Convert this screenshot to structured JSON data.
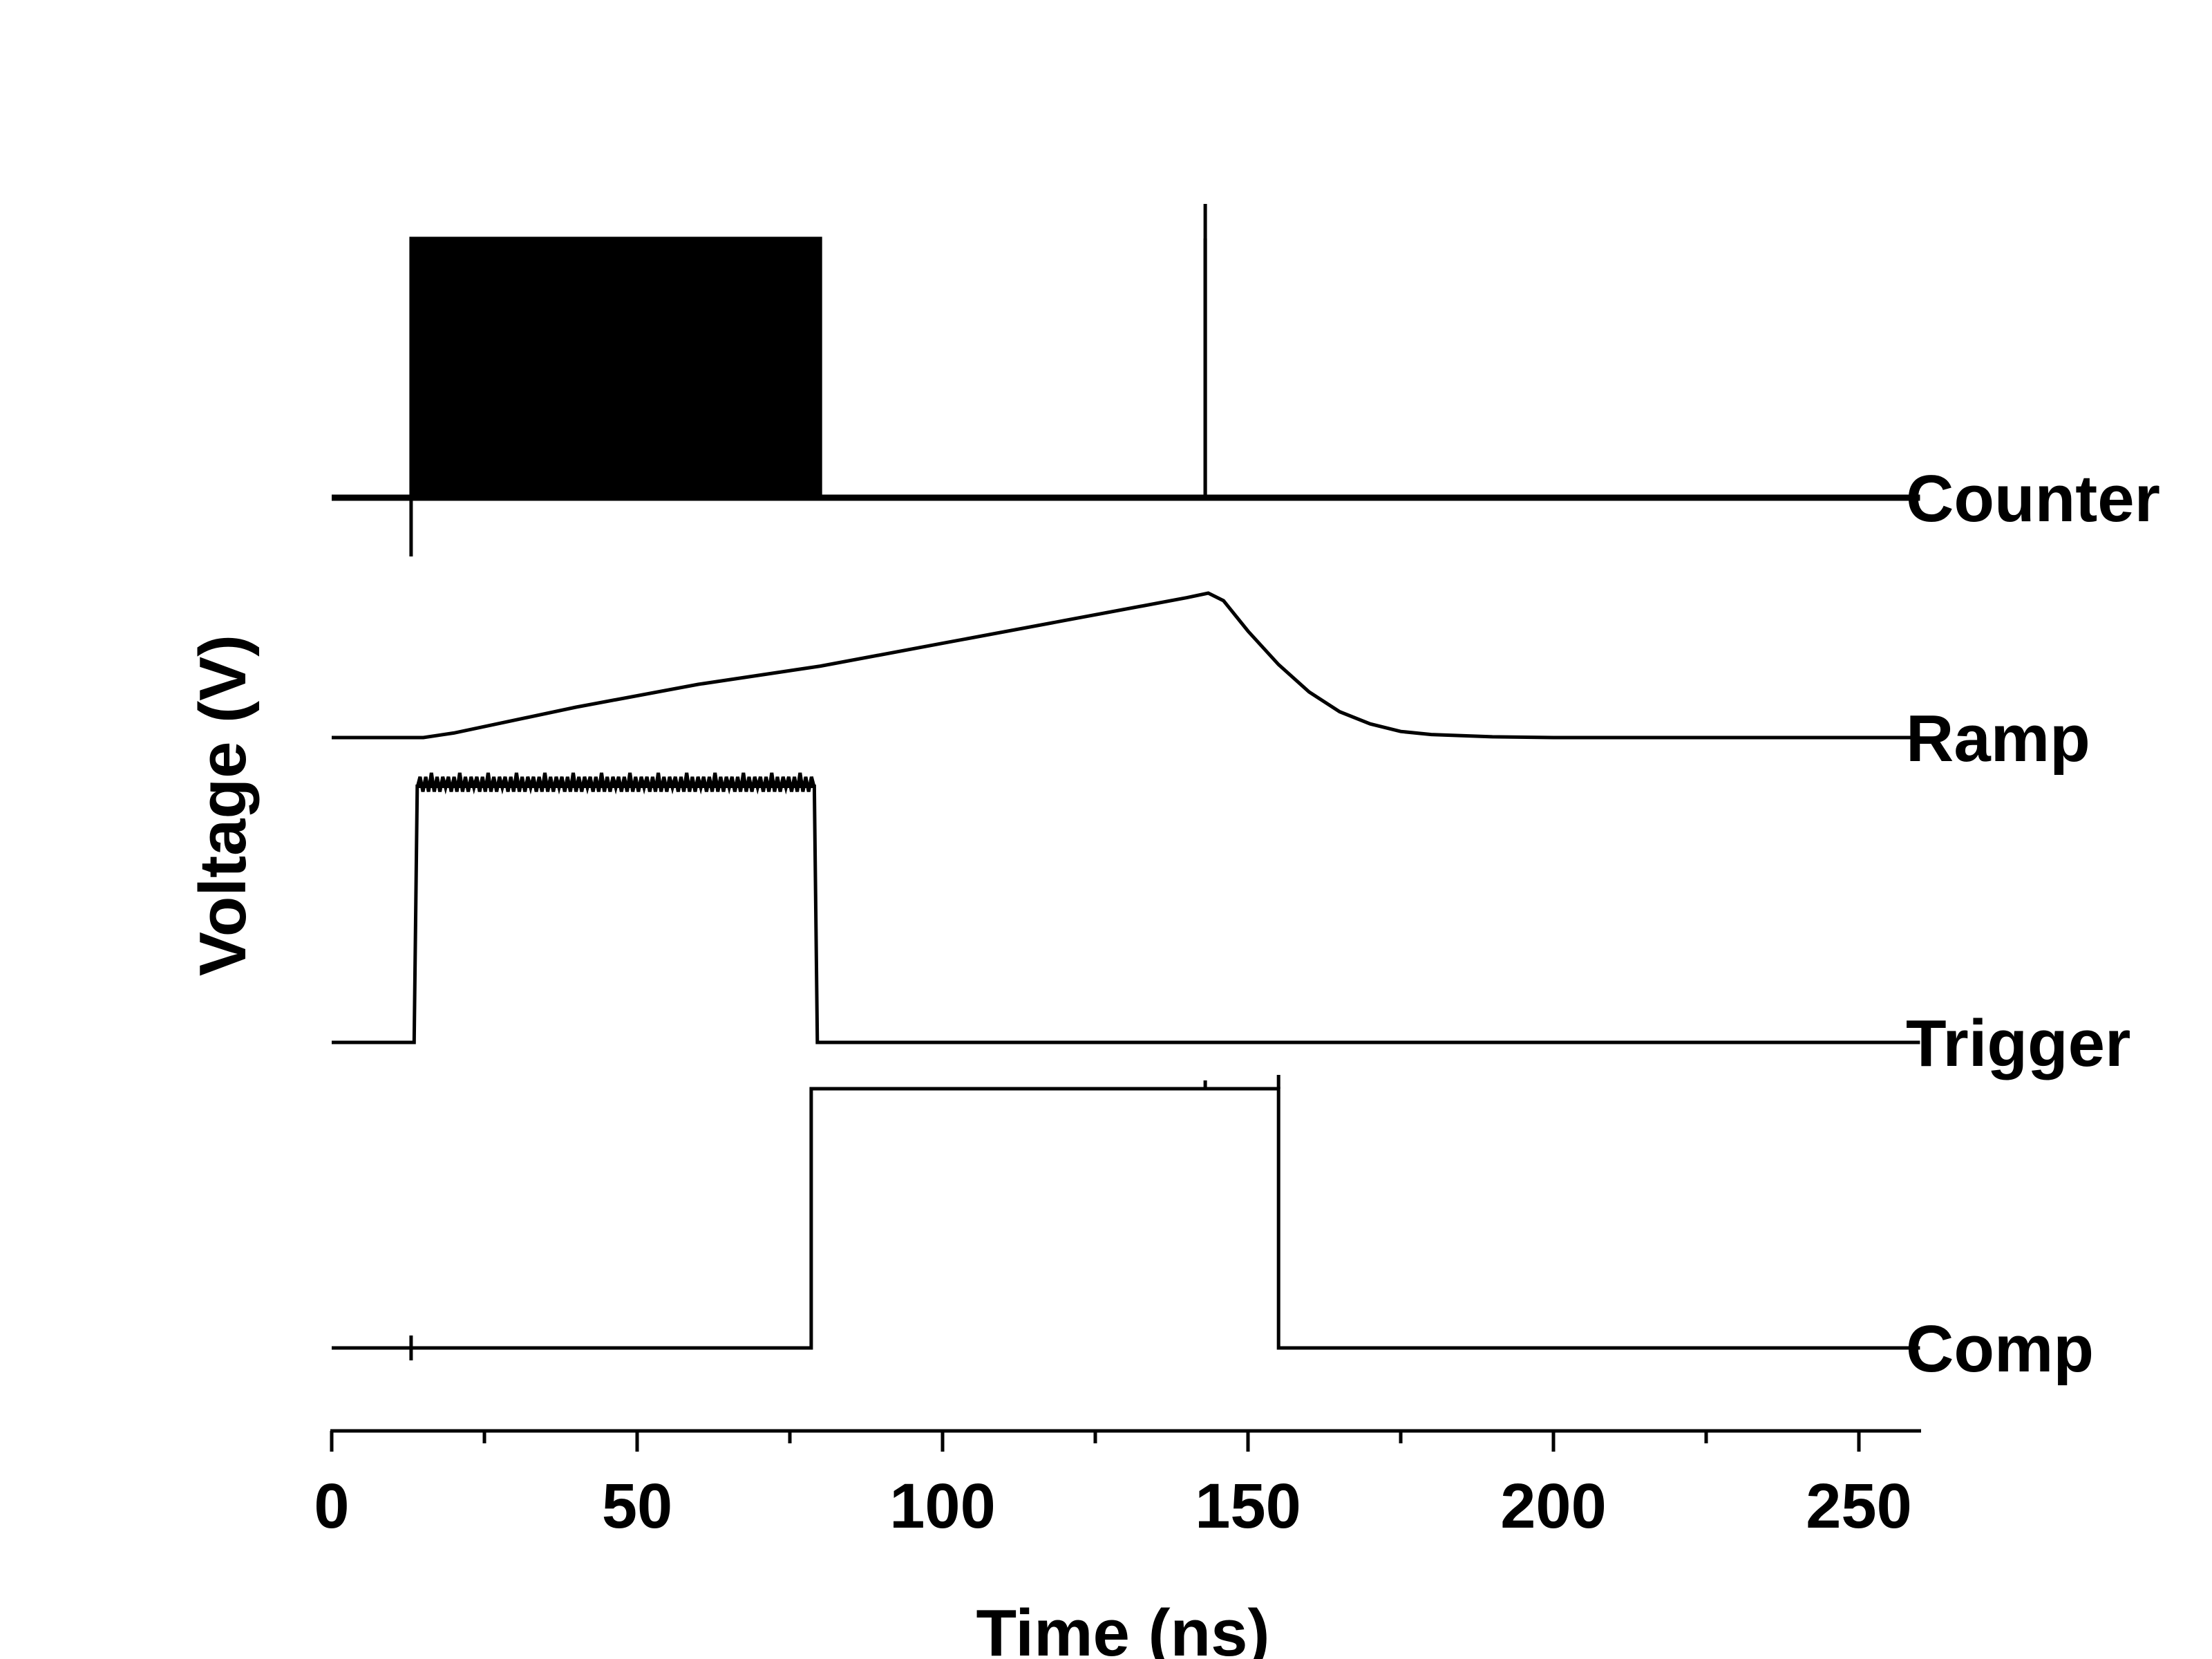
{
  "chart_data": {
    "type": "line",
    "title": "",
    "xlabel": "Time (ns)",
    "ylabel": "Voltage (V)",
    "xlim": [
      0,
      260
    ],
    "x_ticks": [
      0,
      50,
      100,
      150,
      200,
      250
    ],
    "x_tick_labels": [
      "0",
      "50",
      "100",
      "150",
      "200",
      "250"
    ],
    "x_minor_tick_step": 25,
    "y_axis_shown": false,
    "grid": false,
    "legend": "none",
    "offset_traces": true,
    "series": [
      {
        "name": "Counter",
        "style": "clock burst (dense toggling) 13–80 ns, single period 80–143 ns",
        "baseline": 0,
        "high": 1,
        "points": [
          [
            0,
            0
          ],
          [
            13,
            0
          ],
          [
            13,
            1
          ],
          [
            80,
            1
          ],
          [
            80,
            0
          ],
          [
            143,
            0
          ],
          [
            143,
            1
          ],
          [
            143,
            0
          ],
          [
            260,
            0
          ]
        ],
        "dense_toggle_interval": [
          13,
          80
        ]
      },
      {
        "name": "Ramp",
        "baseline": 0,
        "high": 1,
        "points": [
          [
            0,
            0
          ],
          [
            15,
            0
          ],
          [
            20,
            0.03
          ],
          [
            40,
            0.2
          ],
          [
            60,
            0.35
          ],
          [
            80,
            0.47
          ],
          [
            100,
            0.62
          ],
          [
            120,
            0.77
          ],
          [
            140,
            0.92
          ],
          [
            143.5,
            0.95
          ],
          [
            146,
            0.9
          ],
          [
            150,
            0.7
          ],
          [
            155,
            0.48
          ],
          [
            160,
            0.3
          ],
          [
            165,
            0.17
          ],
          [
            170,
            0.09
          ],
          [
            175,
            0.04
          ],
          [
            180,
            0.02
          ],
          [
            190,
            0.005
          ],
          [
            200,
            0
          ],
          [
            260,
            0
          ]
        ]
      },
      {
        "name": "Trigger",
        "baseline": 0,
        "high": 1,
        "points": [
          [
            0,
            0
          ],
          [
            13.5,
            0
          ],
          [
            14,
            0.95
          ],
          [
            79,
            0.95
          ],
          [
            79.5,
            0
          ],
          [
            260,
            0
          ]
        ],
        "noise_interval": [
          14,
          79
        ]
      },
      {
        "name": "Comp",
        "baseline": 0,
        "high": 1,
        "points": [
          [
            0,
            0
          ],
          [
            78.5,
            0
          ],
          [
            78.5,
            1
          ],
          [
            155,
            1
          ],
          [
            155,
            0
          ],
          [
            260,
            0
          ]
        ]
      }
    ]
  }
}
